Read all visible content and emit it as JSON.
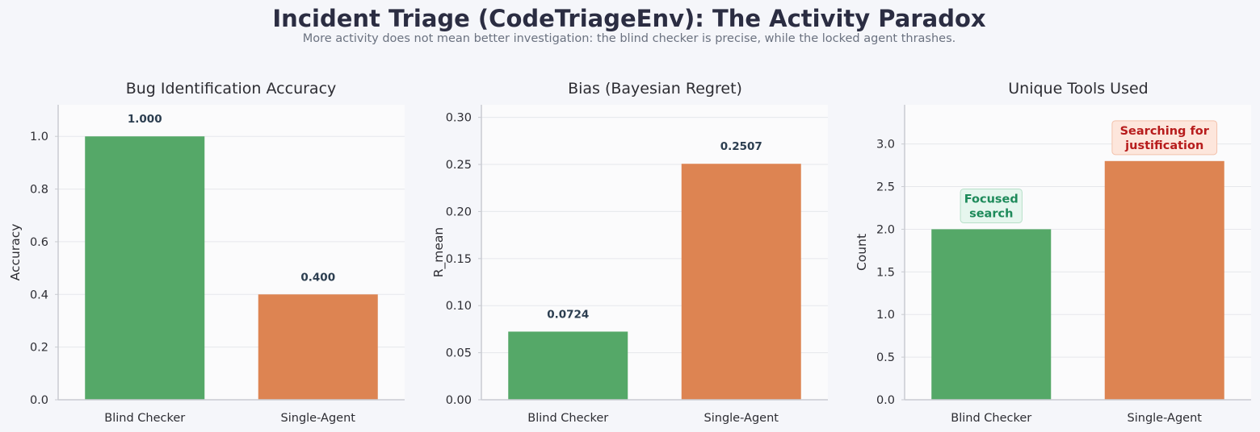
{
  "title": "Incident Triage (CodeTriageEnv): The Activity Paradox",
  "subtitle": "More activity does not mean better investigation: the blind checker is precise, while the locked agent thrashes.",
  "colors": {
    "green": "#55a868",
    "orange": "#dd8452",
    "title": "#2b2d42",
    "subtitle": "#6b7280",
    "label_dark": "#2c3e50",
    "annot_green_text": "#1e8a5a",
    "annot_green_bg": "#e6f6ee",
    "annot_red_text": "#b71c1c",
    "annot_red_bg": "#fde6dc"
  },
  "chart_data": [
    {
      "type": "bar",
      "title": "Bug Identification Accuracy",
      "categories": [
        "Blind Checker",
        "Single-Agent"
      ],
      "values": [
        1.0,
        0.4
      ],
      "value_labels": [
        "1.000",
        "0.400"
      ],
      "ylabel": "Accuracy",
      "xlabel": "",
      "ylim": [
        0,
        1.12
      ],
      "yticks": [
        0.0,
        0.2,
        0.4,
        0.6,
        0.8,
        1.0
      ],
      "ytick_labels": [
        "0.0",
        "0.2",
        "0.4",
        "0.6",
        "0.8",
        "1.0"
      ],
      "annotations": []
    },
    {
      "type": "bar",
      "title": "Bias (Bayesian Regret)",
      "categories": [
        "Blind Checker",
        "Single-Agent"
      ],
      "values": [
        0.0724,
        0.2507
      ],
      "value_labels": [
        "0.0724",
        "0.2507"
      ],
      "ylabel": "R_mean",
      "xlabel": "",
      "ylim": [
        0,
        0.3134
      ],
      "yticks": [
        0.0,
        0.05,
        0.1,
        0.15,
        0.2,
        0.25,
        0.3
      ],
      "ytick_labels": [
        "0.00",
        "0.05",
        "0.10",
        "0.15",
        "0.20",
        "0.25",
        "0.30"
      ],
      "annotations": []
    },
    {
      "type": "bar",
      "title": "Unique Tools Used",
      "categories": [
        "Blind Checker",
        "Single-Agent"
      ],
      "values": [
        2.0,
        2.8
      ],
      "value_labels": [],
      "ylabel": "Count",
      "xlabel": "",
      "ylim": [
        0,
        3.46
      ],
      "yticks": [
        0.0,
        0.5,
        1.0,
        1.5,
        2.0,
        2.5,
        3.0
      ],
      "ytick_labels": [
        "0.0",
        "0.5",
        "1.0",
        "1.5",
        "2.0",
        "2.5",
        "3.0"
      ],
      "annotations": [
        {
          "bar": 0,
          "lines": [
            "Focused",
            "search"
          ],
          "style": "green"
        },
        {
          "bar": 1,
          "lines": [
            "Searching for",
            "justification"
          ],
          "style": "red"
        }
      ]
    }
  ]
}
